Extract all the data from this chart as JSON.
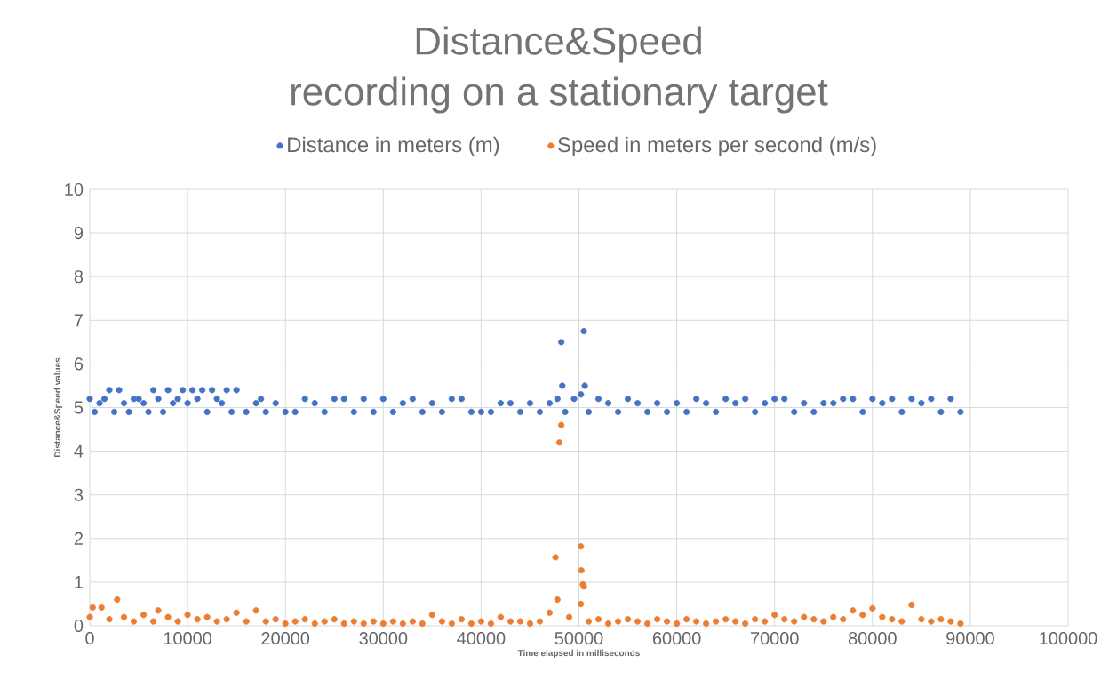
{
  "chart_data": {
    "type": "scatter",
    "title": "Distance&Speed",
    "subtitle": "recording on a stationary target",
    "xlabel": "Time elapsed in milliseconds",
    "ylabel": "Distance&Speed values",
    "xlim": [
      0,
      100000
    ],
    "ylim": [
      0,
      10
    ],
    "xticks": [
      0,
      10000,
      20000,
      30000,
      40000,
      50000,
      60000,
      70000,
      80000,
      90000,
      100000
    ],
    "yticks": [
      0,
      1,
      2,
      3,
      4,
      5,
      6,
      7,
      8,
      9,
      10
    ],
    "grid": true,
    "legend": "top",
    "marker": "circle",
    "series": [
      {
        "name": "Distance in meters (m)",
        "color": "#4472c4",
        "x": [
          0,
          500,
          1000,
          1500,
          2000,
          2500,
          3000,
          3500,
          4000,
          4500,
          5000,
          5500,
          6000,
          6500,
          7000,
          7500,
          8000,
          8500,
          9000,
          9500,
          10000,
          10500,
          11000,
          11500,
          12000,
          12500,
          13000,
          13500,
          14000,
          14500,
          15000,
          16000,
          17000,
          17500,
          18000,
          19000,
          20000,
          21000,
          22000,
          23000,
          24000,
          25000,
          26000,
          27000,
          28000,
          29000,
          30000,
          31000,
          32000,
          33000,
          34000,
          35000,
          36000,
          37000,
          38000,
          39000,
          40000,
          41000,
          42000,
          43000,
          44000,
          45000,
          46000,
          47000,
          47800,
          48200,
          48300,
          48600,
          49500,
          50200,
          50500,
          50600,
          51000,
          52000,
          53000,
          54000,
          55000,
          56000,
          57000,
          58000,
          59000,
          60000,
          61000,
          62000,
          63000,
          64000,
          65000,
          66000,
          67000,
          68000,
          69000,
          70000,
          71000,
          72000,
          73000,
          74000,
          75000,
          76000,
          77000,
          78000,
          79000,
          80000,
          81000,
          82000,
          83000,
          84000,
          85000,
          86000,
          87000,
          88000,
          89000
        ],
        "values": [
          5.2,
          4.9,
          5.1,
          5.2,
          5.4,
          4.9,
          5.4,
          5.1,
          4.9,
          5.2,
          5.2,
          5.1,
          4.9,
          5.4,
          5.2,
          4.9,
          5.4,
          5.1,
          5.2,
          5.4,
          5.1,
          5.4,
          5.2,
          5.4,
          4.9,
          5.4,
          5.2,
          5.1,
          5.4,
          4.9,
          5.4,
          4.9,
          5.1,
          5.2,
          4.9,
          5.1,
          4.9,
          4.9,
          5.2,
          5.1,
          4.9,
          5.2,
          5.2,
          4.9,
          5.2,
          4.9,
          5.2,
          4.9,
          5.1,
          5.2,
          4.9,
          5.1,
          4.9,
          5.2,
          5.2,
          4.9,
          4.9,
          4.9,
          5.1,
          5.1,
          4.9,
          5.1,
          4.9,
          5.1,
          5.2,
          6.5,
          5.5,
          4.9,
          5.2,
          5.3,
          6.75,
          5.5,
          4.9,
          5.2,
          5.1,
          4.9,
          5.2,
          5.1,
          4.9,
          5.1,
          4.9,
          5.1,
          4.9,
          5.2,
          5.1,
          4.9,
          5.2,
          5.1,
          5.2,
          4.9,
          5.1,
          5.2,
          5.2,
          4.9,
          5.1,
          4.9,
          5.1,
          5.1,
          5.2,
          5.2,
          4.9,
          5.2,
          5.1,
          5.2,
          4.9,
          5.2,
          5.1,
          5.2,
          4.9,
          5.2,
          4.9
        ]
      },
      {
        "name": "Speed in meters per second (m/s)",
        "color": "#ed7d31",
        "x": [
          0,
          300,
          1200,
          2000,
          2800,
          3500,
          4500,
          5500,
          6500,
          7000,
          8000,
          9000,
          10000,
          11000,
          12000,
          13000,
          14000,
          15000,
          16000,
          17000,
          18000,
          19000,
          20000,
          21000,
          22000,
          23000,
          24000,
          25000,
          26000,
          27000,
          28000,
          29000,
          30000,
          31000,
          32000,
          33000,
          34000,
          35000,
          36000,
          37000,
          38000,
          39000,
          40000,
          41000,
          42000,
          43000,
          44000,
          45000,
          46000,
          47000,
          47600,
          47800,
          48000,
          48200,
          49000,
          50200,
          50250,
          50400,
          50500,
          50200,
          51000,
          52000,
          53000,
          54000,
          55000,
          56000,
          57000,
          58000,
          59000,
          60000,
          61000,
          62000,
          63000,
          64000,
          65000,
          66000,
          67000,
          68000,
          69000,
          70000,
          71000,
          72000,
          73000,
          74000,
          75000,
          76000,
          77000,
          78000,
          79000,
          80000,
          81000,
          82000,
          83000,
          84000,
          85000,
          86000,
          87000,
          88000,
          89000
        ],
        "values": [
          0.2,
          0.42,
          0.42,
          0.15,
          0.6,
          0.2,
          0.1,
          0.25,
          0.1,
          0.35,
          0.2,
          0.1,
          0.25,
          0.15,
          0.2,
          0.1,
          0.15,
          0.3,
          0.1,
          0.35,
          0.1,
          0.15,
          0.05,
          0.1,
          0.15,
          0.05,
          0.1,
          0.15,
          0.05,
          0.1,
          0.05,
          0.1,
          0.05,
          0.1,
          0.05,
          0.1,
          0.05,
          0.25,
          0.1,
          0.05,
          0.15,
          0.05,
          0.1,
          0.05,
          0.2,
          0.1,
          0.1,
          0.05,
          0.1,
          0.3,
          1.57,
          0.6,
          4.2,
          4.6,
          0.2,
          1.82,
          1.27,
          0.95,
          0.9,
          0.5,
          0.1,
          0.15,
          0.05,
          0.1,
          0.15,
          0.1,
          0.05,
          0.15,
          0.1,
          0.05,
          0.15,
          0.1,
          0.05,
          0.1,
          0.15,
          0.1,
          0.05,
          0.15,
          0.1,
          0.25,
          0.15,
          0.1,
          0.2,
          0.15,
          0.1,
          0.2,
          0.15,
          0.35,
          0.25,
          0.4,
          0.2,
          0.15,
          0.1,
          0.48,
          0.15,
          0.1,
          0.15,
          0.1,
          0.05
        ]
      }
    ]
  }
}
